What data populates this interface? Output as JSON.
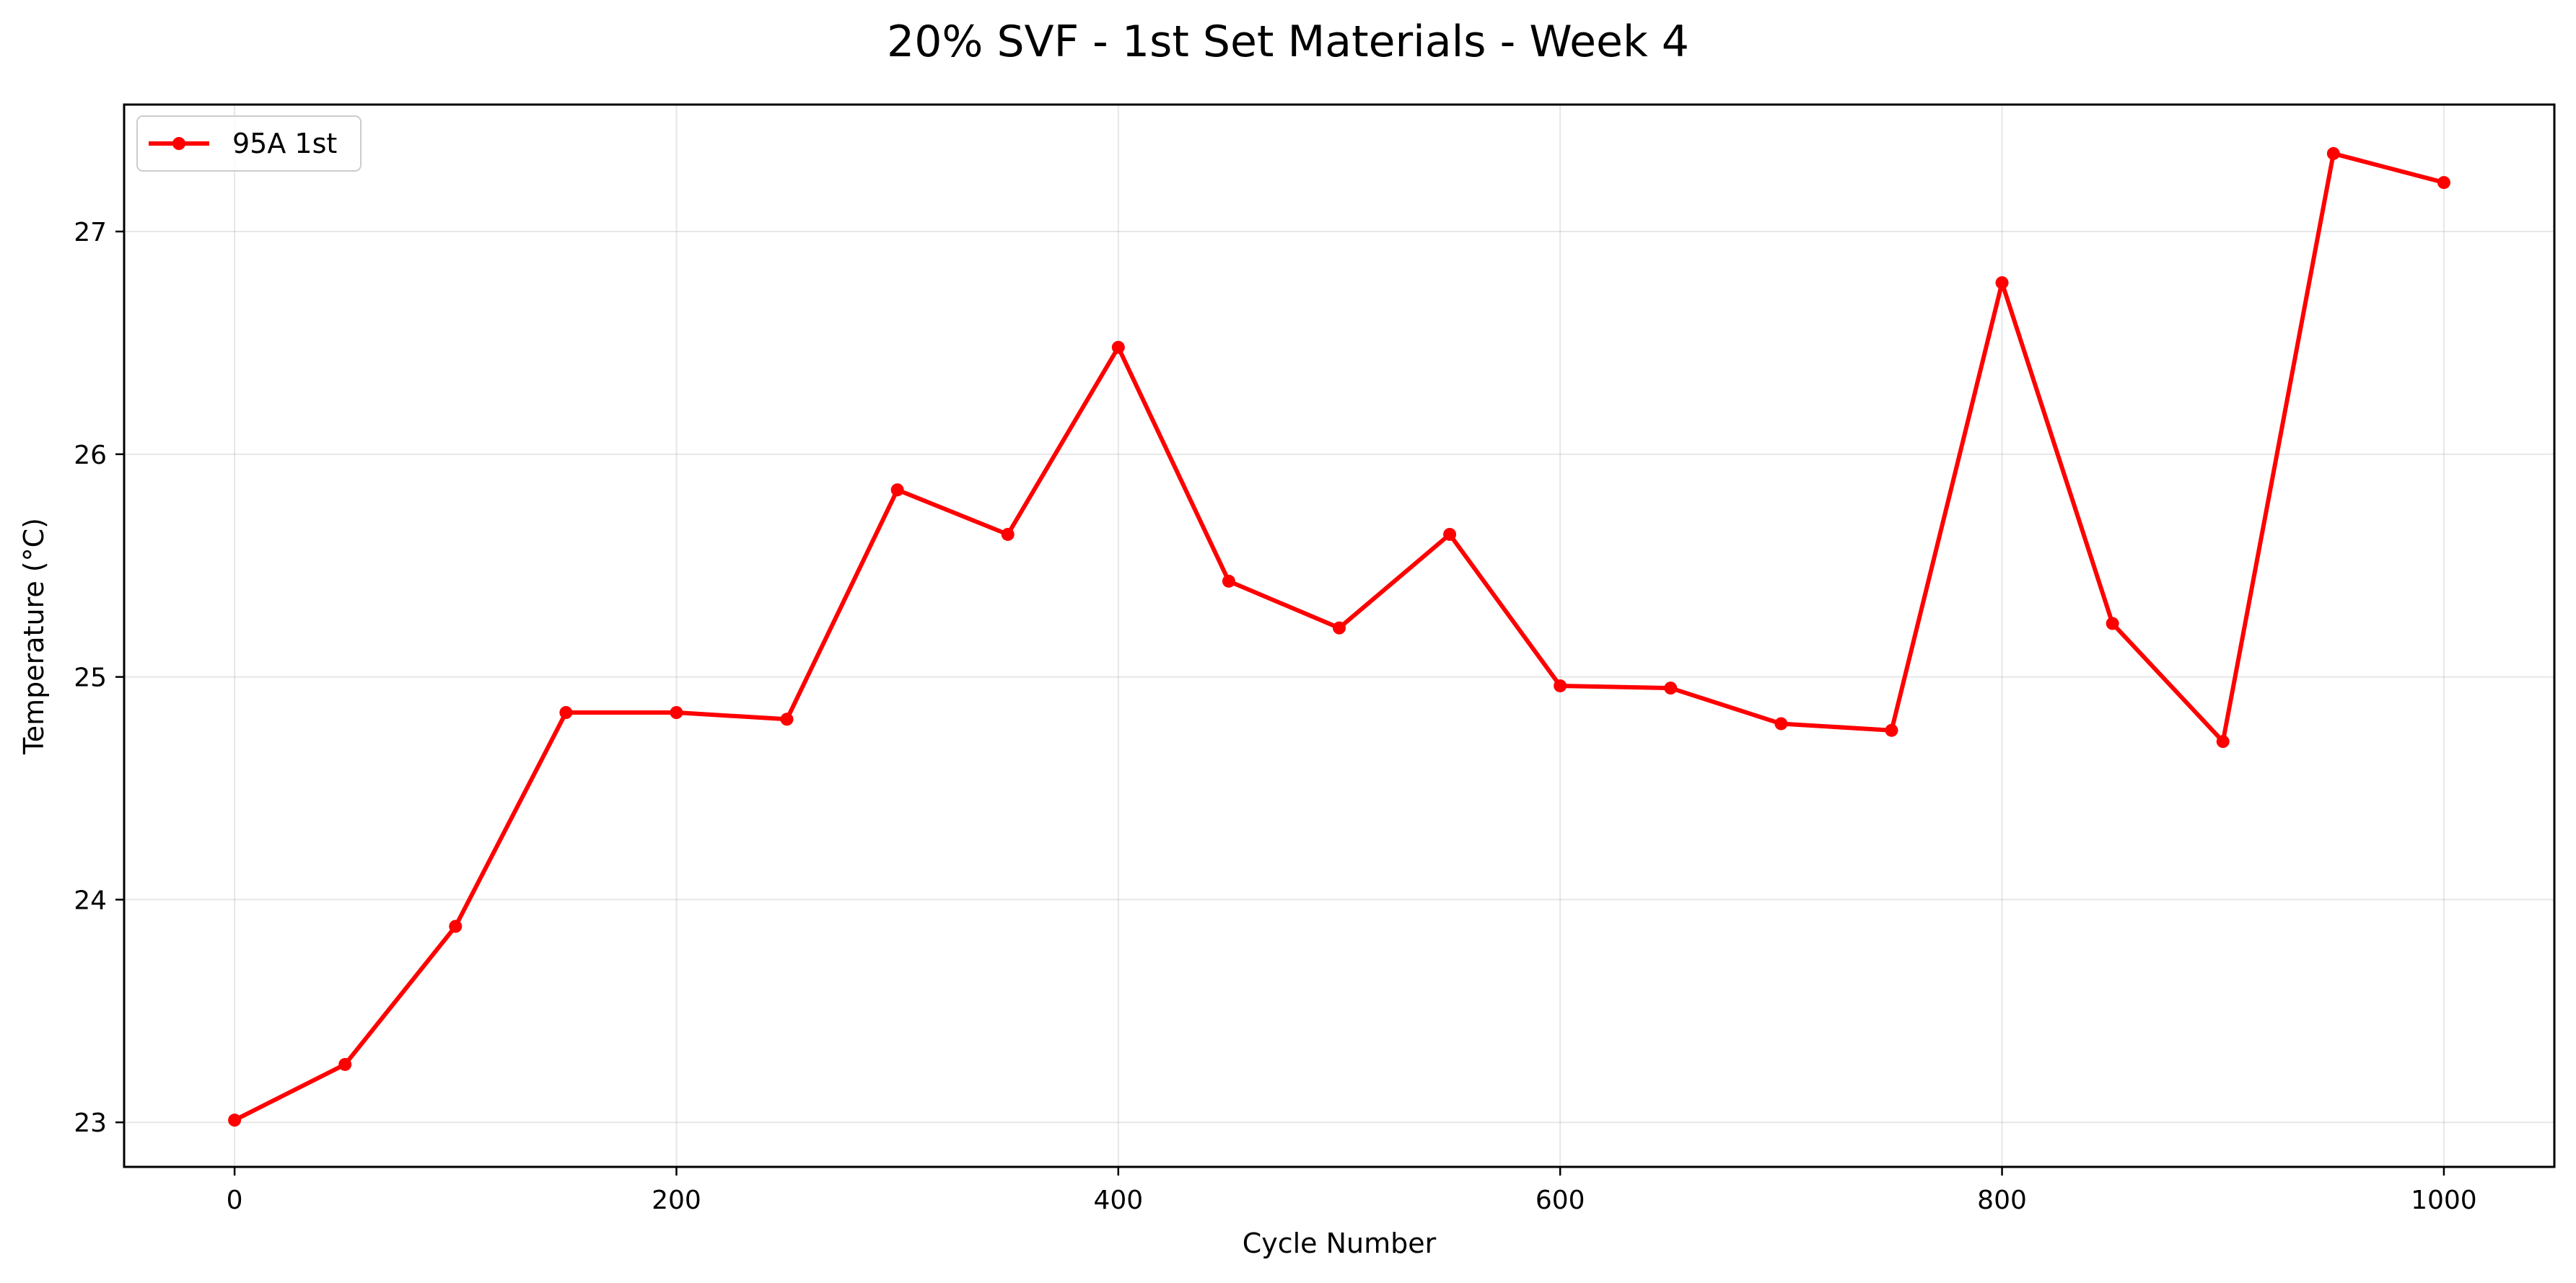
{
  "chart_data": {
    "type": "line",
    "title": "20% SVF - 1st Set Materials - Week 4",
    "xlabel": "Cycle Number",
    "ylabel": "Temperature (°C)",
    "xlim": [
      -50,
      1050
    ],
    "ylim": [
      22.8,
      27.57
    ],
    "xticks": [
      0,
      200,
      400,
      600,
      800,
      1000
    ],
    "yticks": [
      23,
      24,
      25,
      26,
      27
    ],
    "grid": true,
    "legend_position": "upper-left",
    "series": [
      {
        "name": "95A 1st",
        "color": "#ff0000",
        "marker": "circle",
        "x": [
          0,
          50,
          100,
          150,
          200,
          250,
          300,
          350,
          400,
          450,
          500,
          550,
          600,
          650,
          700,
          750,
          800,
          850,
          900,
          950,
          1000
        ],
        "y": [
          23.01,
          23.26,
          23.88,
          24.84,
          24.84,
          24.81,
          25.84,
          25.64,
          26.48,
          25.43,
          25.22,
          25.64,
          24.96,
          24.95,
          24.79,
          24.76,
          26.77,
          25.24,
          24.71,
          27.35,
          27.22
        ]
      }
    ]
  }
}
